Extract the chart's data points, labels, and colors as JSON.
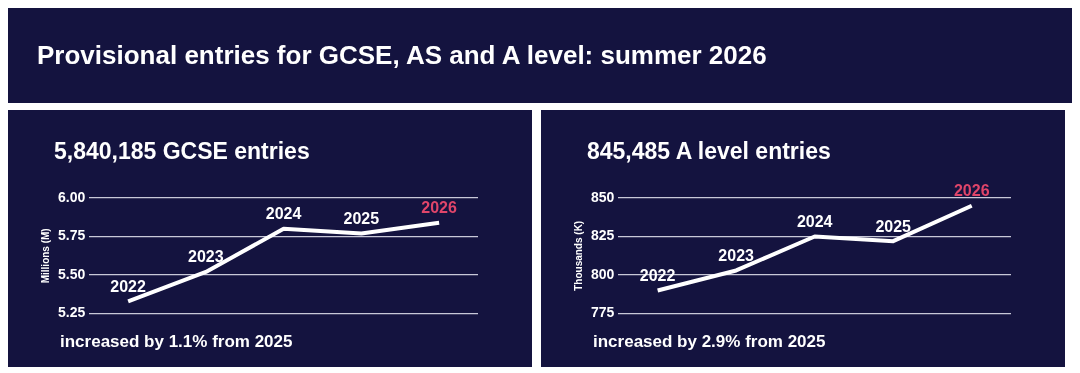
{
  "chart_data": [
    {
      "type": "line",
      "title": "Provisional entries for GCSE, AS and A level: summer 2026",
      "subtitle": "5,840,185 GCSE entries",
      "ylabel": "Millions (M)",
      "categories": [
        "2022",
        "2023",
        "2024",
        "2025",
        "2026"
      ],
      "series": [
        {
          "color": "#ffffff",
          "colors": [
            "#ffffff",
            "#ffffff",
            "#ffffff",
            "#ffffff",
            "#e0456a"
          ],
          "values": [
            5.33,
            5.52,
            5.8,
            5.77,
            5.84
          ]
        }
      ],
      "ylim": [
        5.25,
        6.0
      ],
      "yticks": [
        {
          "value": 5.25,
          "label": "5.25"
        },
        {
          "value": 5.5,
          "label": "5.50"
        },
        {
          "value": 5.75,
          "label": "5.75"
        },
        {
          "value": 6,
          "label": "6.00"
        }
      ],
      "grid": "y",
      "marker": "none",
      "annotations": [
        "increased by 1.1% from 2025"
      ]
    },
    {
      "type": "line",
      "subtitle": "845,485 A level entries",
      "ylabel": "Thousands (K)",
      "categories": [
        "2022",
        "2023",
        "2024",
        "2025",
        "2026"
      ],
      "series": [
        {
          "color": "#ffffff",
          "colors": [
            "#ffffff",
            "#ffffff",
            "#ffffff",
            "#ffffff",
            "#e0456a"
          ],
          "values": [
            790,
            803,
            825,
            822,
            845
          ]
        }
      ],
      "ylim": [
        775,
        850
      ],
      "yticks": [
        775,
        800,
        825,
        850
      ],
      "grid": "y",
      "marker": "none",
      "annotations": [
        "increased by 2.9% from 2025"
      ]
    }
  ]
}
